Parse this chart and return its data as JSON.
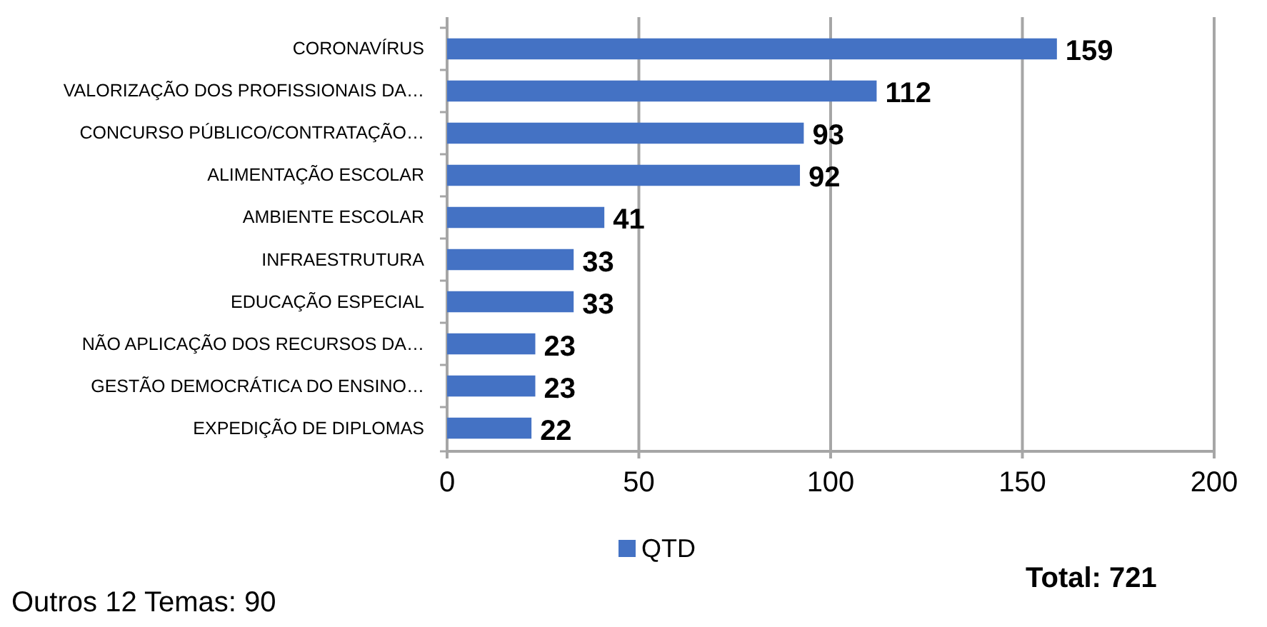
{
  "chart_data": {
    "type": "bar",
    "orientation": "horizontal",
    "categories": [
      "CORONAVÍRUS",
      "VALORIZAÇÃO DOS PROFISSIONAIS DA…",
      "CONCURSO PÚBLICO/CONTRATAÇÃO…",
      "ALIMENTAÇÃO ESCOLAR",
      "AMBIENTE ESCOLAR",
      "INFRAESTRUTURA",
      "EDUCAÇÃO ESPECIAL",
      "NÃO APLICAÇÃO DOS RECURSOS DA…",
      "GESTÃO DEMOCRÁTICA DO ENSINO…",
      "EXPEDIÇÃO DE DIPLOMAS"
    ],
    "series": [
      {
        "name": "QTD",
        "color": "#4472c4",
        "values": [
          159,
          112,
          93,
          92,
          41,
          33,
          33,
          23,
          23,
          22
        ]
      }
    ],
    "xlim": [
      0,
      200
    ],
    "xticks": [
      0,
      50,
      100,
      150,
      200
    ],
    "grid": "x",
    "legend": "bottom",
    "data_labels": true,
    "annotations": [
      "Outros 12 Temas: 90",
      "Total: 721"
    ]
  }
}
